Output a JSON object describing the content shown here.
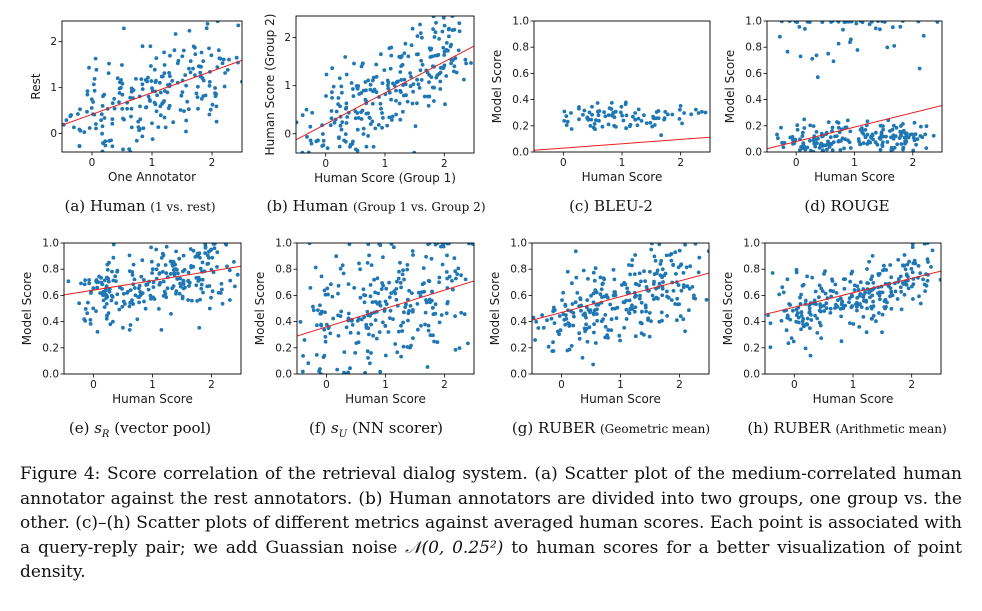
{
  "chart_data": [
    {
      "type": "scatter",
      "id": "a",
      "xlabel": "One Annotator",
      "ylabel": "Rest",
      "xlim": [
        -0.5,
        2.5
      ],
      "ylim": [
        -0.4,
        2.45
      ],
      "xticks": [
        "0",
        "1",
        "2"
      ],
      "yticks": [
        "0",
        "1",
        "2"
      ],
      "yticks_values": [
        0,
        1,
        2
      ],
      "regression": {
        "intercept": 0.42,
        "slope": 0.47
      },
      "n_points": 220,
      "point_model": {
        "mean": 0.85,
        "slope": 0.47,
        "noise": 0.55,
        "xmin": -0.5,
        "xmax": 2.5,
        "ymin": -0.4,
        "ymax": 2.45
      },
      "points_color": "#1f77b4",
      "line_color": "#e8201f"
    },
    {
      "type": "scatter",
      "id": "b",
      "xlabel": "Human Score (Group 1)",
      "ylabel": "Human Score (Group 2)",
      "xlim": [
        -0.5,
        2.5
      ],
      "ylim": [
        -0.4,
        2.45
      ],
      "xticks": [
        "0",
        "1",
        "2"
      ],
      "yticks": [
        "0",
        "1",
        "2"
      ],
      "yticks_values": [
        0,
        1,
        2
      ],
      "regression": {
        "intercept": 0.2,
        "slope": 0.65
      },
      "n_points": 260,
      "point_model": {
        "mean": 0.85,
        "slope": 0.65,
        "noise": 0.45,
        "xmin": -0.5,
        "xmax": 2.5,
        "ymin": -0.4,
        "ymax": 2.45
      },
      "points_color": "#1f77b4",
      "line_color": "#e8201f"
    },
    {
      "type": "scatter",
      "id": "c",
      "xlabel": "Human Score",
      "ylabel": "Model Score",
      "xlim": [
        -0.5,
        2.5
      ],
      "ylim": [
        0.0,
        1.0
      ],
      "xticks": [
        "0",
        "1",
        "2"
      ],
      "yticks": [
        "0.0",
        "0.2",
        "0.4",
        "0.6",
        "0.8",
        "1.0"
      ],
      "yticks_values": [
        0,
        0.2,
        0.4,
        0.6,
        0.8,
        1.0
      ],
      "regression": {
        "intercept": 0.03,
        "slope": 0.033
      },
      "n_points": 90,
      "point_model": {
        "mean": 0.27,
        "slope": 0.0,
        "noise": 0.05,
        "xmin": 0.0,
        "xmax": 2.5,
        "ymin": 0.0,
        "ymax": 1.0
      },
      "points_color": "#1f77b4",
      "line_color": "#e8201f"
    },
    {
      "type": "scatter",
      "id": "d",
      "xlabel": "Human Score",
      "ylabel": "Model Score",
      "xlim": [
        -0.5,
        2.5
      ],
      "ylim": [
        0.0,
        1.0
      ],
      "xticks": [
        "0",
        "1",
        "2"
      ],
      "yticks": [
        "0.0",
        "0.2",
        "0.4",
        "0.6",
        "0.8",
        "1.0"
      ],
      "yticks_values": [
        0,
        0.2,
        0.4,
        0.6,
        0.8,
        1.0
      ],
      "regression": {
        "intercept": 0.08,
        "slope": 0.11
      },
      "n_points": 240,
      "point_model": {
        "mean": 0.1,
        "slope": 0.02,
        "noise": 0.06,
        "xmin": -0.5,
        "xmax": 2.5,
        "ymin": 0.0,
        "ymax": 1.0,
        "top_fraction": 0.25
      },
      "points_color": "#1f77b4",
      "line_color": "#e8201f"
    },
    {
      "type": "scatter",
      "id": "e",
      "xlabel": "Human Score",
      "ylabel": "Model Score",
      "xlim": [
        -0.5,
        2.5
      ],
      "ylim": [
        0.0,
        1.0
      ],
      "xticks": [
        "0",
        "1",
        "2"
      ],
      "yticks": [
        "0.0",
        "0.2",
        "0.4",
        "0.6",
        "0.8",
        "1.0"
      ],
      "yticks_values": [
        0,
        0.2,
        0.4,
        0.6,
        0.8,
        1.0
      ],
      "regression": {
        "intercept": 0.64,
        "slope": 0.073
      },
      "n_points": 260,
      "point_model": {
        "mean": 0.7,
        "slope": 0.07,
        "noise": 0.14,
        "xmin": -0.5,
        "xmax": 2.5,
        "ymin": 0.0,
        "ymax": 1.0
      },
      "points_color": "#1f77b4",
      "line_color": "#e8201f"
    },
    {
      "type": "scatter",
      "id": "f",
      "xlabel": "Human Score",
      "ylabel": "Model Score",
      "xlim": [
        -0.5,
        2.5
      ],
      "ylim": [
        0.0,
        1.0
      ],
      "xticks": [
        "0",
        "1",
        "2"
      ],
      "yticks": [
        "0.0",
        "0.2",
        "0.4",
        "0.6",
        "0.8",
        "1.0"
      ],
      "yticks_values": [
        0,
        0.2,
        0.4,
        0.6,
        0.8,
        1.0
      ],
      "regression": {
        "intercept": 0.36,
        "slope": 0.14
      },
      "n_points": 260,
      "point_model": {
        "mean": 0.5,
        "slope": 0.14,
        "noise": 0.24,
        "xmin": -0.5,
        "xmax": 2.5,
        "ymin": 0.0,
        "ymax": 1.0
      },
      "points_color": "#1f77b4",
      "line_color": "#e8201f"
    },
    {
      "type": "scatter",
      "id": "g",
      "xlabel": "Human Score",
      "ylabel": "Model Score",
      "xlim": [
        -0.5,
        2.5
      ],
      "ylim": [
        0.0,
        1.0
      ],
      "xticks": [
        "0",
        "1",
        "2"
      ],
      "yticks": [
        "0.0",
        "0.2",
        "0.4",
        "0.6",
        "0.8",
        "1.0"
      ],
      "yticks_values": [
        0,
        0.2,
        0.4,
        0.6,
        0.8,
        1.0
      ],
      "regression": {
        "intercept": 0.47,
        "slope": 0.12
      },
      "n_points": 270,
      "point_model": {
        "mean": 0.55,
        "slope": 0.12,
        "noise": 0.15,
        "xmin": -0.5,
        "xmax": 2.5,
        "ymin": 0.0,
        "ymax": 1.0
      },
      "points_color": "#1f77b4",
      "line_color": "#e8201f"
    },
    {
      "type": "scatter",
      "id": "h",
      "xlabel": "Human Score",
      "ylabel": "Model Score",
      "xlim": [
        -0.5,
        2.5
      ],
      "ylim": [
        0.0,
        1.0
      ],
      "xticks": [
        "0",
        "1",
        "2"
      ],
      "yticks": [
        "0.0",
        "0.2",
        "0.4",
        "0.6",
        "0.8",
        "1.0"
      ],
      "yticks_values": [
        0,
        0.2,
        0.4,
        0.6,
        0.8,
        1.0
      ],
      "regression": {
        "intercept": 0.51,
        "slope": 0.11
      },
      "n_points": 270,
      "point_model": {
        "mean": 0.6,
        "slope": 0.11,
        "noise": 0.13,
        "xmin": -0.5,
        "xmax": 2.5,
        "ymin": 0.0,
        "ymax": 1.0
      },
      "points_color": "#1f77b4",
      "line_color": "#e8201f"
    }
  ],
  "subcaptions": [
    {
      "label": "(a)",
      "name": "Human",
      "detail": "(1 vs. rest)"
    },
    {
      "label": "(b)",
      "name": "Human",
      "detail": "(Group 1 vs. Group 2)"
    },
    {
      "label": "(c)",
      "name": "BLEU-2",
      "detail": ""
    },
    {
      "label": "(d)",
      "name": "ROUGE",
      "detail": ""
    },
    {
      "label": "(e)",
      "name": "s",
      "sub": "R",
      "detail": "(vector pool)"
    },
    {
      "label": "(f)",
      "name": "s",
      "sub": "U",
      "detail": "(NN scorer)"
    },
    {
      "label": "(g)",
      "name": "RUBER",
      "detail": "(Geometric mean)"
    },
    {
      "label": "(h)",
      "name": "RUBER",
      "detail": "(Arithmetic mean)"
    }
  ],
  "caption": {
    "label": "Figure 4:",
    "text_1": "Score correlation of the retrieval dialog system. (a) Scatter plot of the medium-correlated human annotator against the rest annotators. (b) Human annotators are divided into two groups, one group vs. the other. (c)–(h) Scatter plots of different metrics against averaged human scores. Each point is associated with a query-reply pair; we add Guassian noise",
    "math": "𝒩(0, 0.25²)",
    "text_2": "to human scores for a better visualization of point density."
  }
}
